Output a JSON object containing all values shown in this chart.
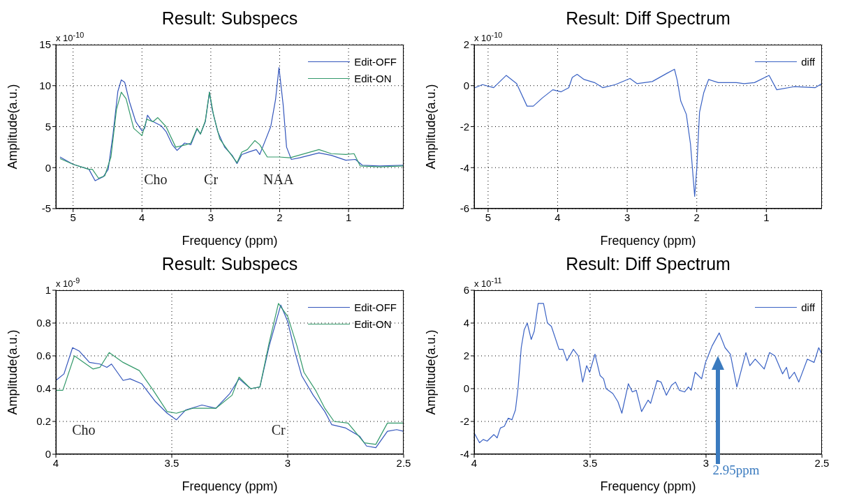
{
  "chart_data": [
    {
      "type": "line",
      "title": "Result: Subspecs",
      "xlabel": "Frequency (ppm)",
      "ylabel": "Amplitude(a.u.)",
      "xlim": [
        5.25,
        0.2
      ],
      "xticks": [
        5,
        4,
        3,
        2,
        1
      ],
      "ylim": [
        -5,
        15
      ],
      "yticks": [
        -5,
        0,
        5,
        10,
        15
      ],
      "grid": true,
      "legend": "top right",
      "annotations": [
        "x 10$^{-10}$",
        "Cho",
        "Cr",
        "NAA"
      ],
      "series": [
        {
          "name": "Edit-OFF",
          "color": "#3355bb",
          "x": [
            5.19,
            5.0,
            4.77,
            4.68,
            4.56,
            4.49,
            4.42,
            4.35,
            4.3,
            4.25,
            4.18,
            4.09,
            4.0,
            3.96,
            3.92,
            3.86,
            3.79,
            3.72,
            3.65,
            3.56,
            3.49,
            3.38,
            3.29,
            3.2,
            3.15,
            3.08,
            3.02,
            2.98,
            2.9,
            2.8,
            2.69,
            2.62,
            2.55,
            2.45,
            2.34,
            2.29,
            2.2,
            2.13,
            2.06,
            2.01,
            1.95,
            1.9,
            1.83,
            1.71,
            1.43,
            1.25,
            1.04,
            0.9,
            0.8,
            0.55,
            0.2
          ],
          "values": [
            1.3,
            0.4,
            -0.2,
            -1.6,
            -1.1,
            -0.2,
            4.1,
            9.3,
            10.7,
            10.4,
            8.0,
            5.6,
            4.5,
            4.8,
            6.4,
            5.7,
            5.4,
            5.1,
            4.4,
            2.8,
            2.1,
            3.0,
            2.8,
            4.7,
            4.1,
            5.6,
            9.2,
            7.1,
            4.4,
            2.5,
            1.5,
            0.5,
            1.6,
            1.9,
            2.2,
            1.6,
            3.5,
            5.0,
            8.3,
            12.2,
            7.7,
            2.5,
            1.0,
            1.2,
            1.8,
            1.5,
            0.9,
            1.0,
            0.3,
            0.2,
            0.3
          ]
        },
        {
          "name": "Edit-ON",
          "color": "#33996a",
          "x": [
            5.19,
            5.0,
            4.77,
            4.72,
            4.63,
            4.54,
            4.45,
            4.37,
            4.3,
            4.23,
            4.12,
            4.0,
            3.93,
            3.84,
            3.77,
            3.65,
            3.51,
            3.36,
            3.29,
            3.2,
            3.15,
            3.08,
            3.02,
            2.96,
            2.87,
            2.76,
            2.62,
            2.55,
            2.47,
            2.36,
            2.29,
            2.18,
            2.01,
            1.85,
            1.43,
            1.25,
            1.04,
            0.92,
            0.83,
            0.55,
            0.2
          ],
          "values": [
            1.1,
            0.4,
            -0.2,
            -0.2,
            -1.3,
            -1.0,
            1.3,
            7.1,
            9.2,
            8.4,
            4.8,
            3.9,
            5.9,
            5.6,
            6.1,
            5.0,
            2.5,
            2.8,
            3.0,
            4.8,
            4.1,
            5.7,
            9.2,
            6.4,
            3.5,
            2.2,
            0.6,
            1.9,
            2.2,
            3.3,
            2.8,
            1.3,
            1.3,
            1.2,
            2.2,
            1.7,
            1.6,
            1.7,
            0.2,
            0.1,
            0.2
          ]
        }
      ]
    },
    {
      "type": "line",
      "title": "Result: Diff Spectrum",
      "xlabel": "Frequency (ppm)",
      "ylabel": "Amplitude(a.u.)",
      "xlim": [
        5.2,
        0.2
      ],
      "xticks": [
        5,
        4,
        3,
        2,
        1
      ],
      "ylim": [
        -6,
        2
      ],
      "yticks": [
        -6,
        -4,
        -2,
        0,
        2
      ],
      "grid": true,
      "legend": "top right",
      "annotations": [
        "x 10$^{-10}$"
      ],
      "series": [
        {
          "name": "diff",
          "color": "#3a62c4",
          "x": [
            5.19,
            5.08,
            4.92,
            4.74,
            4.59,
            4.44,
            4.35,
            4.22,
            4.07,
            3.95,
            3.84,
            3.79,
            3.72,
            3.62,
            3.47,
            3.35,
            3.17,
            2.96,
            2.86,
            2.64,
            2.43,
            2.32,
            2.28,
            2.23,
            2.15,
            2.09,
            2.03,
            2.0,
            1.96,
            1.9,
            1.83,
            1.69,
            1.43,
            1.32,
            1.17,
            0.96,
            0.85,
            0.6,
            0.3,
            0.2
          ],
          "values": [
            -0.1,
            0.05,
            -0.1,
            0.5,
            0.1,
            -1.0,
            -1.0,
            -0.6,
            -0.2,
            -0.3,
            -0.1,
            0.4,
            0.55,
            0.3,
            0.15,
            -0.1,
            0.05,
            0.35,
            0.1,
            0.2,
            0.6,
            0.8,
            0.25,
            -0.75,
            -1.4,
            -2.85,
            -5.4,
            -4.05,
            -1.3,
            -0.35,
            0.3,
            0.15,
            0.15,
            0.1,
            0.15,
            0.5,
            -0.2,
            -0.05,
            -0.1,
            0.1
          ]
        }
      ]
    },
    {
      "type": "line",
      "title": "Result: Subspecs",
      "xlabel": "Frequency (ppm)",
      "ylabel": "Amplitude(a.u.)",
      "xlim": [
        4,
        2.5
      ],
      "xticks": [
        4,
        3.5,
        3,
        2.5
      ],
      "ylim": [
        0,
        1
      ],
      "yticks": [
        0,
        0.2,
        0.4,
        0.6,
        0.8,
        1
      ],
      "grid": true,
      "legend": "top right",
      "annotations": [
        "x 10$^{-9}$",
        "Cho",
        "Cr"
      ],
      "series": [
        {
          "name": "Edit-OFF",
          "color": "#3355bb",
          "x": [
            4.0,
            3.965,
            3.928,
            3.9,
            3.855,
            3.81,
            3.78,
            3.76,
            3.71,
            3.68,
            3.63,
            3.57,
            3.52,
            3.48,
            3.44,
            3.37,
            3.31,
            3.25,
            3.21,
            3.16,
            3.12,
            3.08,
            3.03,
            3.0,
            2.97,
            2.94,
            2.89,
            2.84,
            2.81,
            2.75,
            2.69,
            2.66,
            2.62,
            2.57,
            2.53,
            2.5
          ],
          "values": [
            0.45,
            0.49,
            0.65,
            0.63,
            0.56,
            0.55,
            0.53,
            0.55,
            0.45,
            0.46,
            0.43,
            0.32,
            0.25,
            0.21,
            0.27,
            0.3,
            0.28,
            0.37,
            0.46,
            0.4,
            0.41,
            0.66,
            0.91,
            0.81,
            0.63,
            0.48,
            0.36,
            0.26,
            0.18,
            0.16,
            0.11,
            0.05,
            0.04,
            0.14,
            0.15,
            0.14
          ]
        },
        {
          "name": "Edit-ON",
          "color": "#33996a",
          "x": [
            4.0,
            3.97,
            3.92,
            3.87,
            3.84,
            3.81,
            3.77,
            3.71,
            3.64,
            3.58,
            3.52,
            3.48,
            3.41,
            3.35,
            3.31,
            3.24,
            3.21,
            3.16,
            3.12,
            3.08,
            3.04,
            3.0,
            2.96,
            2.93,
            2.88,
            2.84,
            2.8,
            2.74,
            2.67,
            2.62,
            2.57,
            2.5
          ],
          "values": [
            0.39,
            0.39,
            0.6,
            0.55,
            0.52,
            0.53,
            0.62,
            0.56,
            0.51,
            0.39,
            0.26,
            0.25,
            0.28,
            0.28,
            0.28,
            0.36,
            0.47,
            0.4,
            0.41,
            0.68,
            0.92,
            0.84,
            0.66,
            0.5,
            0.39,
            0.28,
            0.2,
            0.19,
            0.07,
            0.06,
            0.19,
            0.19
          ]
        }
      ]
    },
    {
      "type": "line",
      "title": "Result: Diff Spectrum",
      "xlabel": "Frequency (ppm)",
      "ylabel": "Amplitude(a.u.)",
      "xlim": [
        4,
        2.5
      ],
      "xticks": [
        4,
        3.5,
        3,
        2.5
      ],
      "ylim": [
        -4,
        6
      ],
      "yticks": [
        -4,
        -2,
        0,
        2,
        4,
        6
      ],
      "grid": true,
      "legend": "top right",
      "annotations": [
        "x 10$^{-11}$",
        "2.95ppm"
      ],
      "series": [
        {
          "name": "diff",
          "color": "#3a62c4",
          "x": [
            4.0,
            3.977,
            3.961,
            3.944,
            3.915,
            3.901,
            3.887,
            3.87,
            3.853,
            3.837,
            3.822,
            3.811,
            3.797,
            3.784,
            3.771,
            3.754,
            3.741,
            3.724,
            3.701,
            3.684,
            3.667,
            3.634,
            3.617,
            3.6,
            3.572,
            3.551,
            3.532,
            3.515,
            3.502,
            3.479,
            3.457,
            3.442,
            3.431,
            3.402,
            3.38,
            3.363,
            3.335,
            3.318,
            3.301,
            3.278,
            3.25,
            3.239,
            3.211,
            3.194,
            3.171,
            3.149,
            3.132,
            3.115,
            3.092,
            3.076,
            3.064,
            3.047,
            3.019,
            3.002,
            2.974,
            2.943,
            2.918,
            2.895,
            2.867,
            2.828,
            2.811,
            2.788,
            2.749,
            2.726,
            2.703,
            2.67,
            2.653,
            2.641,
            2.619,
            2.6,
            2.563,
            2.534,
            2.514,
            2.5
          ],
          "values": [
            -2.7,
            -3.3,
            -3.1,
            -3.2,
            -2.8,
            -3.0,
            -2.4,
            -2.3,
            -1.8,
            -1.9,
            -1.3,
            0.0,
            2.5,
            3.6,
            4.0,
            3.0,
            3.5,
            5.2,
            5.2,
            4.0,
            3.8,
            2.4,
            2.4,
            1.7,
            2.4,
            2.0,
            0.4,
            1.4,
            1.0,
            2.1,
            0.8,
            0.6,
            0.0,
            -0.3,
            -0.8,
            -1.5,
            0.3,
            -0.2,
            -0.1,
            -1.4,
            -0.7,
            -0.9,
            0.5,
            0.4,
            -0.4,
            0.2,
            0.4,
            -0.1,
            -0.2,
            0.1,
            -0.1,
            1.0,
            0.6,
            1.6,
            2.6,
            3.4,
            2.5,
            2.1,
            0.1,
            2.2,
            1.4,
            1.8,
            1.2,
            2.2,
            2.0,
            0.9,
            1.3,
            0.6,
            1.0,
            0.4,
            1.8,
            1.6,
            2.5,
            2.1
          ]
        }
      ]
    }
  ]
}
